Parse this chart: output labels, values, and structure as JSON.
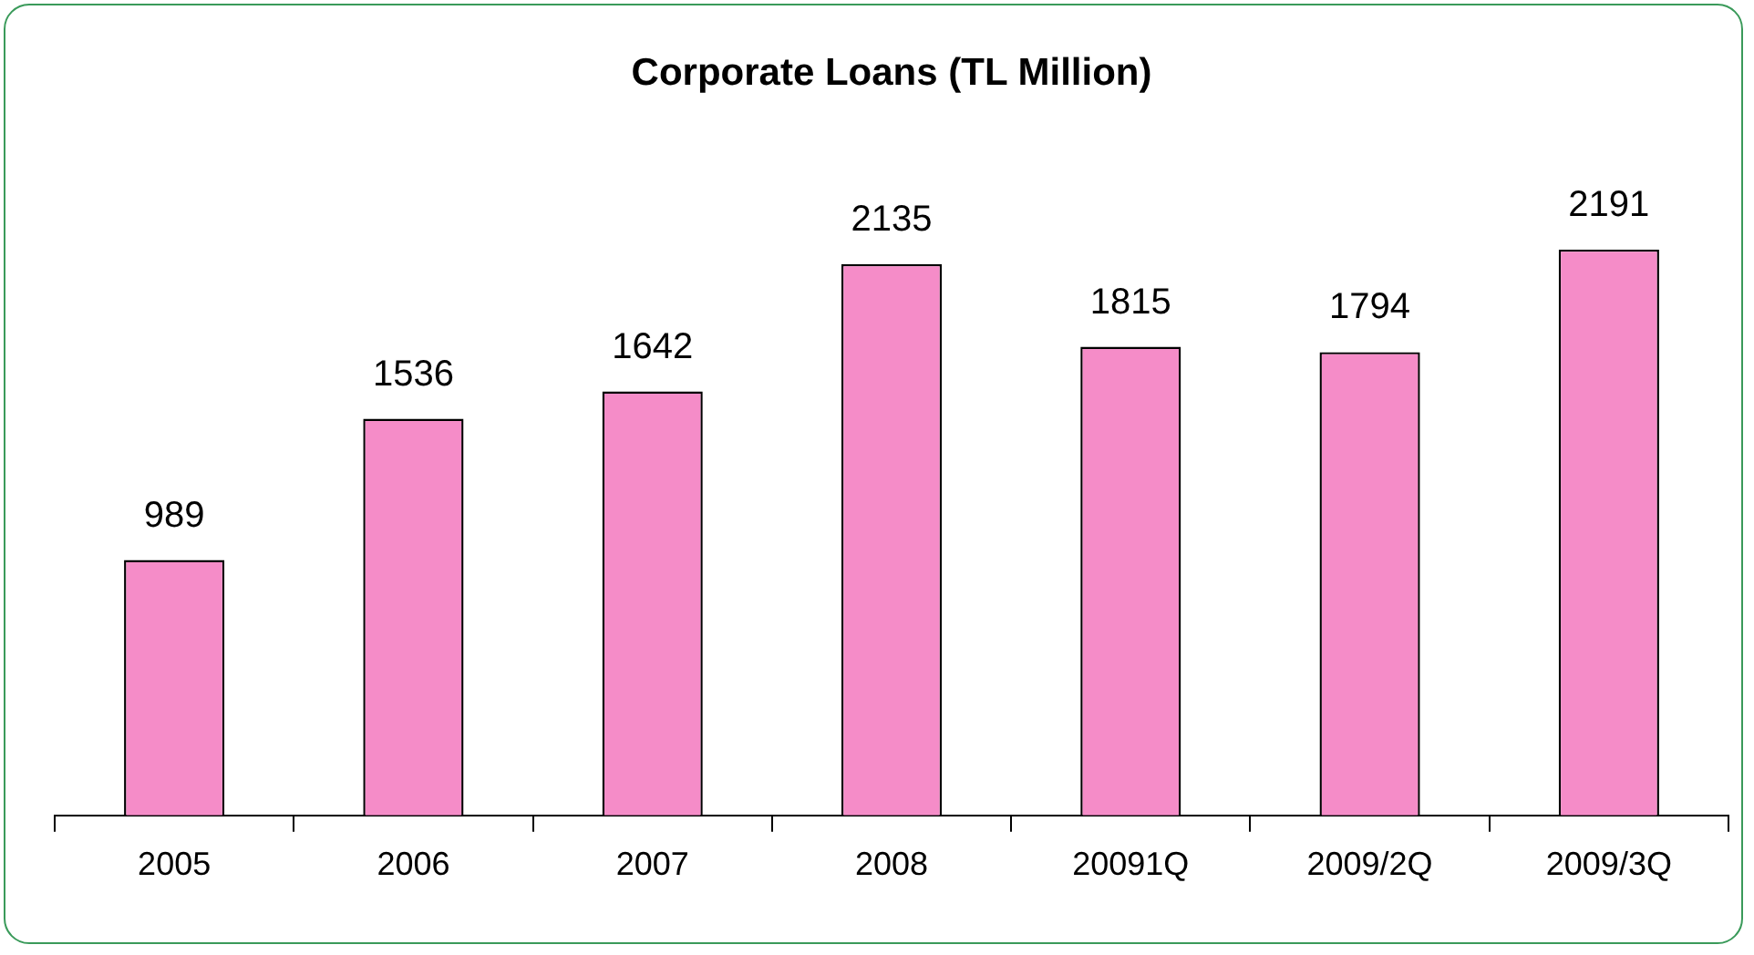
{
  "chart_data": {
    "type": "bar",
    "title": "Corporate Loans (TL Million)",
    "categories": [
      "2005",
      "2006",
      "2007",
      "2008",
      "20091Q",
      "2009/2Q",
      "2009/3Q"
    ],
    "values": [
      989,
      1536,
      1642,
      2135,
      1815,
      1794,
      2191
    ],
    "color": "#f58cc8",
    "data_labels": true,
    "grid": false,
    "legend": false
  }
}
